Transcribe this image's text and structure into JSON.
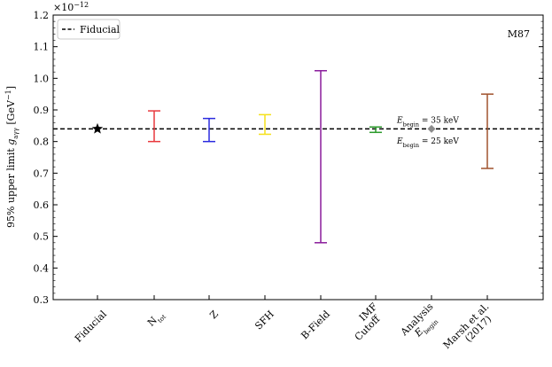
{
  "chart_data": {
    "type": "errorbar",
    "title": "",
    "annotation": "M87",
    "ylabel": "95% upper limit g_{aγγ} [GeV^{-1}]",
    "ylabel_main": "95% upper limit ",
    "ylabel_symbol": "g",
    "ylabel_sub": "aγγ",
    "ylabel_unit": "[GeV",
    "ylabel_unit_exp": "−1",
    "ylabel_unit_close": "]",
    "y_multiplier": "×10",
    "y_multiplier_exp": "−12",
    "ylim": [
      0.3,
      1.2
    ],
    "yticks": [
      0.3,
      0.4,
      0.5,
      0.6,
      0.7,
      0.8,
      0.9,
      1.0,
      1.1,
      1.2
    ],
    "ytick_labels": [
      "0.3",
      "0.4",
      "0.5",
      "0.6",
      "0.7",
      "0.8",
      "0.9",
      "1.0",
      "1.1",
      "1.2"
    ],
    "fiducial_value": 0.84,
    "legend": {
      "label": "Fiducial",
      "placement": "top-left"
    },
    "categories": [
      {
        "label": "Fiducial",
        "lines": [
          "Fiducial"
        ],
        "kind": "star",
        "value": 0.84,
        "color": "#000000"
      },
      {
        "label": "N_tot",
        "lines": [
          "N"
        ],
        "sub": "tot",
        "kind": "range",
        "low": 0.8,
        "high": 0.897,
        "color": "#e8383d"
      },
      {
        "label": "Z",
        "lines": [
          "Z"
        ],
        "kind": "range",
        "low": 0.8,
        "high": 0.873,
        "color": "#2a2adf"
      },
      {
        "label": "SFH",
        "lines": [
          "SFH"
        ],
        "kind": "range",
        "low": 0.823,
        "high": 0.885,
        "color": "#f5e11a"
      },
      {
        "label": "B-Field",
        "lines": [
          "B-Field"
        ],
        "kind": "range",
        "low": 0.48,
        "high": 1.024,
        "color": "#8a1c9c"
      },
      {
        "label": "IMF Cutoff",
        "lines": [
          "IMF",
          "Cutoff"
        ],
        "kind": "range",
        "low": 0.829,
        "high": 0.846,
        "color": "#2a9a2a"
      },
      {
        "label": "Analysis E_begin",
        "lines": [
          "Analysis",
          "E"
        ],
        "sub": "begin",
        "kind": "diamond",
        "value": 0.84,
        "color": "#8c8c8c"
      },
      {
        "label": "Marsh et al. (2017)",
        "lines": [
          "Marsh et al.",
          "(2017)"
        ],
        "kind": "range",
        "low": 0.715,
        "high": 0.95,
        "color": "#a0522d"
      }
    ],
    "annotations": [
      {
        "main": "E",
        "sub": "begin",
        "rest": " = 35 keV",
        "value": 0.87,
        "side": "above"
      },
      {
        "main": "E",
        "sub": "begin",
        "rest": " = 25 keV",
        "value": 0.81,
        "side": "below"
      }
    ]
  }
}
